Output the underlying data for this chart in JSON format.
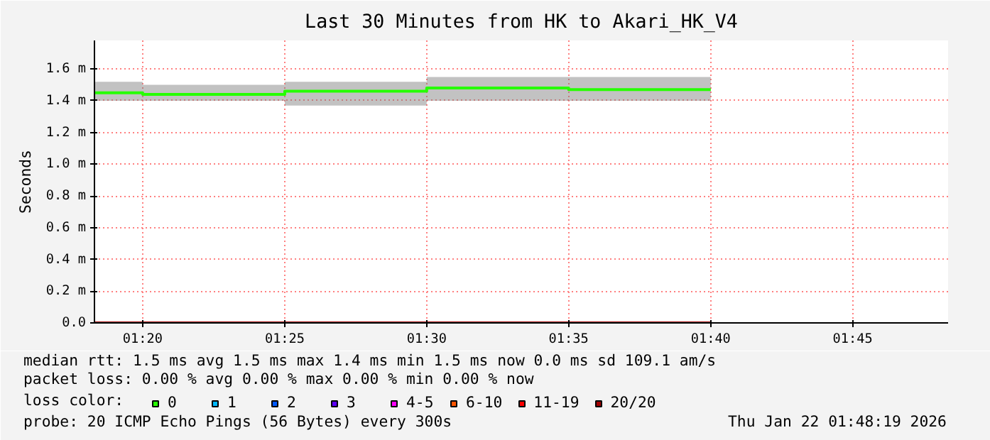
{
  "chart_data": {
    "type": "step",
    "title": "Last 30 Minutes from HK to Akari_HK_V4",
    "ylabel": "Seconds",
    "x": [
      1.305,
      1.3333,
      1.4167,
      1.5,
      1.5833,
      1.6667
    ],
    "xlim": [
      1.305,
      1.806
    ],
    "xticks": [
      {
        "value": 1.3333,
        "label": "01:20"
      },
      {
        "value": 1.4167,
        "label": "01:25"
      },
      {
        "value": 1.5,
        "label": "01:30"
      },
      {
        "value": 1.5833,
        "label": "01:35"
      },
      {
        "value": 1.6667,
        "label": "01:40"
      },
      {
        "value": 1.75,
        "label": "01:45"
      }
    ],
    "ylim": [
      0,
      1.78
    ],
    "yticks": [
      {
        "value": 0,
        "label": "0.0"
      },
      {
        "value": 0.2,
        "label": "0.2 m"
      },
      {
        "value": 0.4,
        "label": "0.4 m"
      },
      {
        "value": 0.6,
        "label": "0.6 m"
      },
      {
        "value": 0.8,
        "label": "0.8 m"
      },
      {
        "value": 1.0,
        "label": "1.0 m"
      },
      {
        "value": 1.2,
        "label": "1.2 m"
      },
      {
        "value": 1.4,
        "label": "1.4 m"
      },
      {
        "value": 1.6,
        "label": "1.6 m"
      }
    ],
    "series": [
      {
        "name": "0",
        "color": "#26ff00",
        "values": [
          1.45,
          1.44,
          1.46,
          1.48,
          1.47,
          1.47
        ],
        "lower": [
          1.4,
          1.4,
          1.37,
          1.4,
          1.4,
          1.4
        ],
        "upper": [
          1.52,
          1.5,
          1.52,
          1.55,
          1.55,
          1.55
        ]
      },
      {
        "name": "1",
        "color": "#00b8ff",
        "values": [
          null,
          null,
          null,
          null,
          null,
          null
        ]
      },
      {
        "name": "2",
        "color": "#0059ff",
        "values": [
          null,
          null,
          null,
          null,
          null,
          null
        ]
      },
      {
        "name": "3",
        "color": "#5e00ff",
        "values": [
          null,
          null,
          null,
          null,
          null,
          null
        ]
      },
      {
        "name": "4-5",
        "color": "#ff00ff",
        "values": [
          null,
          null,
          null,
          null,
          null,
          null
        ]
      },
      {
        "name": "6-10",
        "color": "#ff5500",
        "values": [
          null,
          null,
          null,
          null,
          null,
          null
        ]
      },
      {
        "name": "11-19",
        "color": "#ff0000",
        "values": [
          null,
          null,
          null,
          null,
          null,
          null
        ]
      },
      {
        "name": "20/20",
        "color": "#a10000",
        "values": [
          null,
          null,
          null,
          null,
          null,
          null
        ]
      }
    ],
    "legend_title": "loss color:",
    "legend": "bottom",
    "grid": true,
    "annotations": [
      "median rtt:  1.5 ms avg  1.5 ms max  1.4 ms min  1.5 ms now  0.0 ms sd  109.1   am/s",
      "packet loss: 0.00 % avg  0.00 % max  0.00 % min  0.00 % now",
      "probe:       20 ICMP Echo Pings (56 Bytes) every 300s",
      "Thu Jan 22 01:48:19 2026"
    ]
  }
}
